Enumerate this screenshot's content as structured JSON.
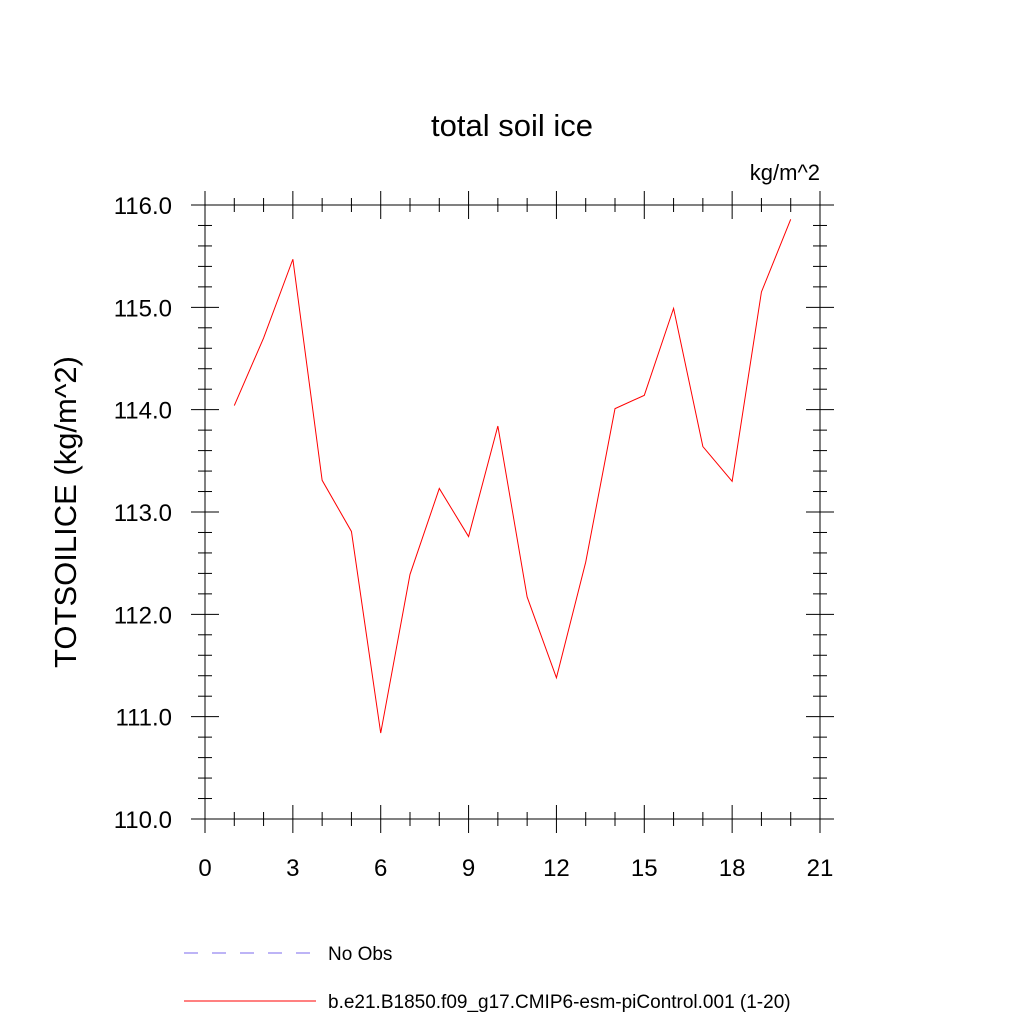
{
  "chart_data": {
    "type": "line",
    "title": "total soil ice",
    "units": "kg/m^2",
    "xlabel": "",
    "ylabel": "TOTSOILICE  (kg/m^2)",
    "xlim": [
      0,
      21
    ],
    "ylim": [
      110,
      116
    ],
    "x_ticks": [
      0,
      3,
      6,
      9,
      12,
      15,
      18,
      21
    ],
    "x_tick_labels": [
      "0",
      "3",
      "6",
      "9",
      "12",
      "15",
      "18",
      "21"
    ],
    "y_ticks": [
      110,
      111,
      112,
      113,
      114,
      115,
      116
    ],
    "y_tick_labels": [
      "110.0",
      "111.0",
      "112.0",
      "113.0",
      "114.0",
      "115.0",
      "116.0"
    ],
    "grid": false,
    "legend_position": "bottom",
    "series": [
      {
        "name": "b.e21.B1850.f09_g17.CMIP6-esm-piControl.001 (1-20)",
        "color": "#ff0000",
        "style": "solid",
        "x": [
          1,
          2,
          3,
          4,
          5,
          6,
          7,
          8,
          9,
          10,
          11,
          12,
          13,
          14,
          15,
          16,
          17,
          18,
          19,
          20
        ],
        "values": [
          114.04,
          114.7,
          115.47,
          113.31,
          112.81,
          110.84,
          112.39,
          113.23,
          112.76,
          113.84,
          112.17,
          111.38,
          112.51,
          114.01,
          114.14,
          114.99,
          113.64,
          113.3,
          115.15,
          115.86
        ]
      }
    ],
    "legend": [
      {
        "label": "No Obs",
        "color": "#7b68ee",
        "style": "dashed"
      },
      {
        "label": "b.e21.B1850.f09_g17.CMIP6-esm-piControl.001 (1-20)",
        "color": "#ff0000",
        "style": "solid"
      }
    ]
  }
}
